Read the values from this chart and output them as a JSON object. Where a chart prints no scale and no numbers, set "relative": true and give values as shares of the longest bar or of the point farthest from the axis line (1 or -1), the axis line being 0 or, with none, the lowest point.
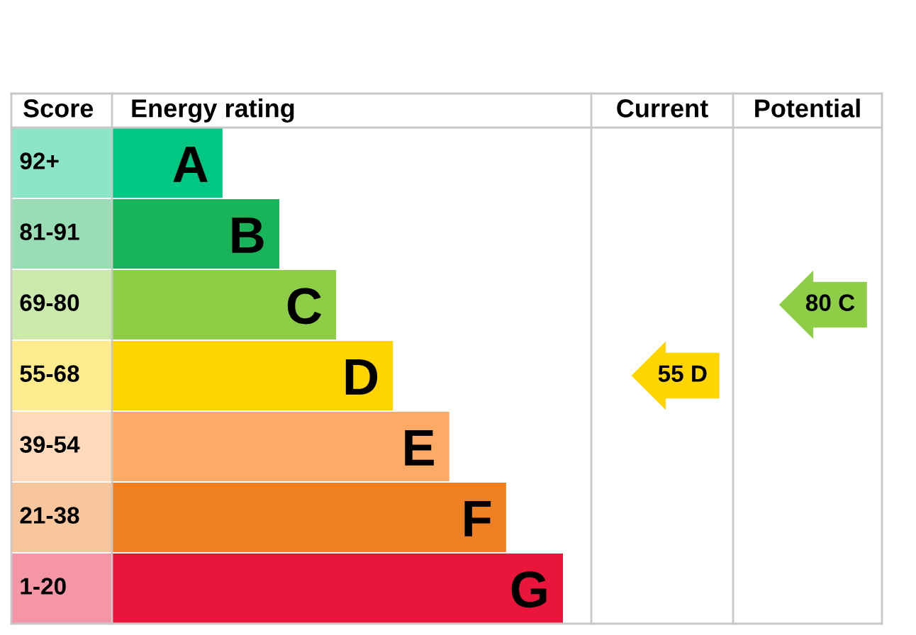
{
  "chart_data": {
    "type": "bar",
    "orientation": "horizontal",
    "relative": true,
    "ylabel": "Score",
    "xlabel": "Energy rating",
    "categories": [
      "A",
      "B",
      "C",
      "D",
      "E",
      "F",
      "G"
    ],
    "values": [
      0.245,
      0.371,
      0.497,
      0.623,
      0.748,
      0.874,
      1
    ],
    "colors": [
      "#00c781",
      "#19b459",
      "#8dce46",
      "#ffd500",
      "#fcaa65",
      "#ef8023",
      "#e9153b"
    ],
    "annotations": [
      "92+",
      "81-91",
      "69-80",
      "55-68",
      "39-54",
      "21-38",
      "1-20",
      "Current",
      "Potential",
      "55 D",
      "80 C"
    ],
    "legend": false
  }
}
